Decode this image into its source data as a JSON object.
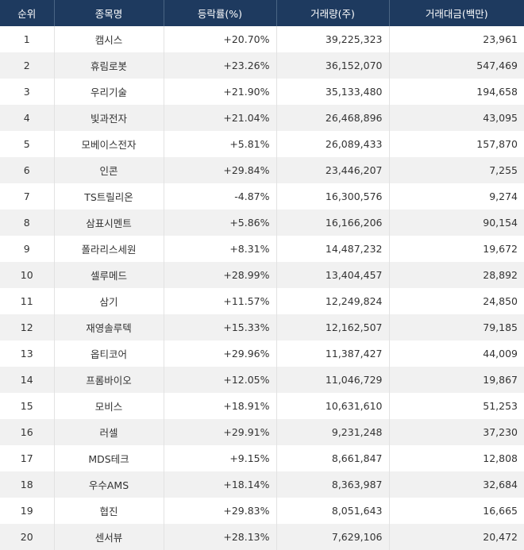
{
  "table": {
    "header": [
      "순위",
      "종목명",
      "등락률(%)",
      "거래량(주)",
      "거래대금(백만)"
    ],
    "rows": [
      [
        "1",
        "캠시스",
        "+20.70%",
        "39,225,323",
        "23,961"
      ],
      [
        "2",
        "휴림로봇",
        "+23.26%",
        "36,152,070",
        "547,469"
      ],
      [
        "3",
        "우리기술",
        "+21.90%",
        "35,133,480",
        "194,658"
      ],
      [
        "4",
        "빛과전자",
        "+21.04%",
        "26,468,896",
        "43,095"
      ],
      [
        "5",
        "모베이스전자",
        "+5.81%",
        "26,089,433",
        "157,870"
      ],
      [
        "6",
        "인콘",
        "+29.84%",
        "23,446,207",
        "7,255"
      ],
      [
        "7",
        "TS트릴리온",
        "-4.87%",
        "16,300,576",
        "9,274"
      ],
      [
        "8",
        "삼표시멘트",
        "+5.86%",
        "16,166,206",
        "90,154"
      ],
      [
        "9",
        "폴라리스세원",
        "+8.31%",
        "14,487,232",
        "19,672"
      ],
      [
        "10",
        "셀루메드",
        "+28.99%",
        "13,404,457",
        "28,892"
      ],
      [
        "11",
        "삼기",
        "+11.57%",
        "12,249,824",
        "24,850"
      ],
      [
        "12",
        "재영솔루텍",
        "+15.33%",
        "12,162,507",
        "79,185"
      ],
      [
        "13",
        "옵티코어",
        "+29.96%",
        "11,387,427",
        "44,009"
      ],
      [
        "14",
        "프롬바이오",
        "+12.05%",
        "11,046,729",
        "19,867"
      ],
      [
        "15",
        "모비스",
        "+18.91%",
        "10,631,610",
        "51,253"
      ],
      [
        "16",
        "러셀",
        "+29.91%",
        "9,231,248",
        "37,230"
      ],
      [
        "17",
        "MDS테크",
        "+9.15%",
        "8,661,847",
        "12,808"
      ],
      [
        "18",
        "우수AMS",
        "+18.14%",
        "8,363,987",
        "32,684"
      ],
      [
        "19",
        "협진",
        "+29.83%",
        "8,051,643",
        "16,665"
      ],
      [
        "20",
        "센서뷰",
        "+28.13%",
        "7,629,106",
        "20,472"
      ]
    ]
  }
}
